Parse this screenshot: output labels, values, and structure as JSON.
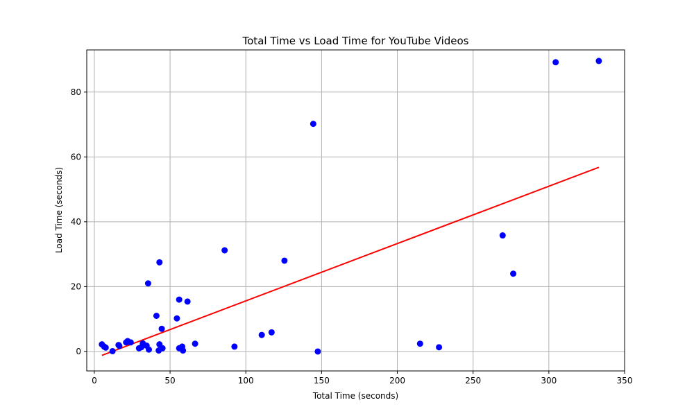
{
  "chart_data": {
    "type": "scatter",
    "title": "Total Time vs Load Time for YouTube Videos",
    "xlabel": "Total Time (seconds)",
    "ylabel": "Load Time (seconds)",
    "xlim": [
      -5,
      350
    ],
    "ylim": [
      -6,
      93
    ],
    "xticks": [
      0,
      50,
      100,
      150,
      200,
      250,
      300,
      350
    ],
    "yticks": [
      0,
      20,
      40,
      60,
      80
    ],
    "grid": true,
    "point_color": "#0000ff",
    "fit_line_color": "#ff0000",
    "points": [
      [
        5,
        2.2
      ],
      [
        6.5,
        1.5
      ],
      [
        7.5,
        1.2
      ],
      [
        12,
        0.1
      ],
      [
        16,
        2.0
      ],
      [
        16.5,
        1.7
      ],
      [
        21,
        2.8
      ],
      [
        22,
        3.2
      ],
      [
        24,
        2.8
      ],
      [
        29.5,
        1.0
      ],
      [
        31,
        1.3
      ],
      [
        32,
        2.5
      ],
      [
        34.5,
        1.8
      ],
      [
        35.5,
        21.0
      ],
      [
        36,
        0.6
      ],
      [
        41,
        11.0
      ],
      [
        42.5,
        0.3
      ],
      [
        43,
        27.5
      ],
      [
        43,
        2.2
      ],
      [
        44.5,
        7.0
      ],
      [
        45,
        1.0
      ],
      [
        54.5,
        10.2
      ],
      [
        56,
        16.0
      ],
      [
        56,
        1.0
      ],
      [
        58,
        1.5
      ],
      [
        58.5,
        0.3
      ],
      [
        61.5,
        15.4
      ],
      [
        66.5,
        2.4
      ],
      [
        86,
        31.2
      ],
      [
        92.5,
        1.5
      ],
      [
        110.5,
        5.1
      ],
      [
        117,
        5.9
      ],
      [
        125.5,
        28.0
      ],
      [
        144.5,
        70.2
      ],
      [
        147.5,
        0.0
      ],
      [
        215,
        2.4
      ],
      [
        227.5,
        1.3
      ],
      [
        269.5,
        35.8
      ],
      [
        276.5,
        24.0
      ],
      [
        304.5,
        89.2
      ],
      [
        333,
        89.6
      ]
    ],
    "fit_line": {
      "x": [
        5,
        333
      ],
      "y": [
        -1.2,
        56.8
      ]
    }
  }
}
